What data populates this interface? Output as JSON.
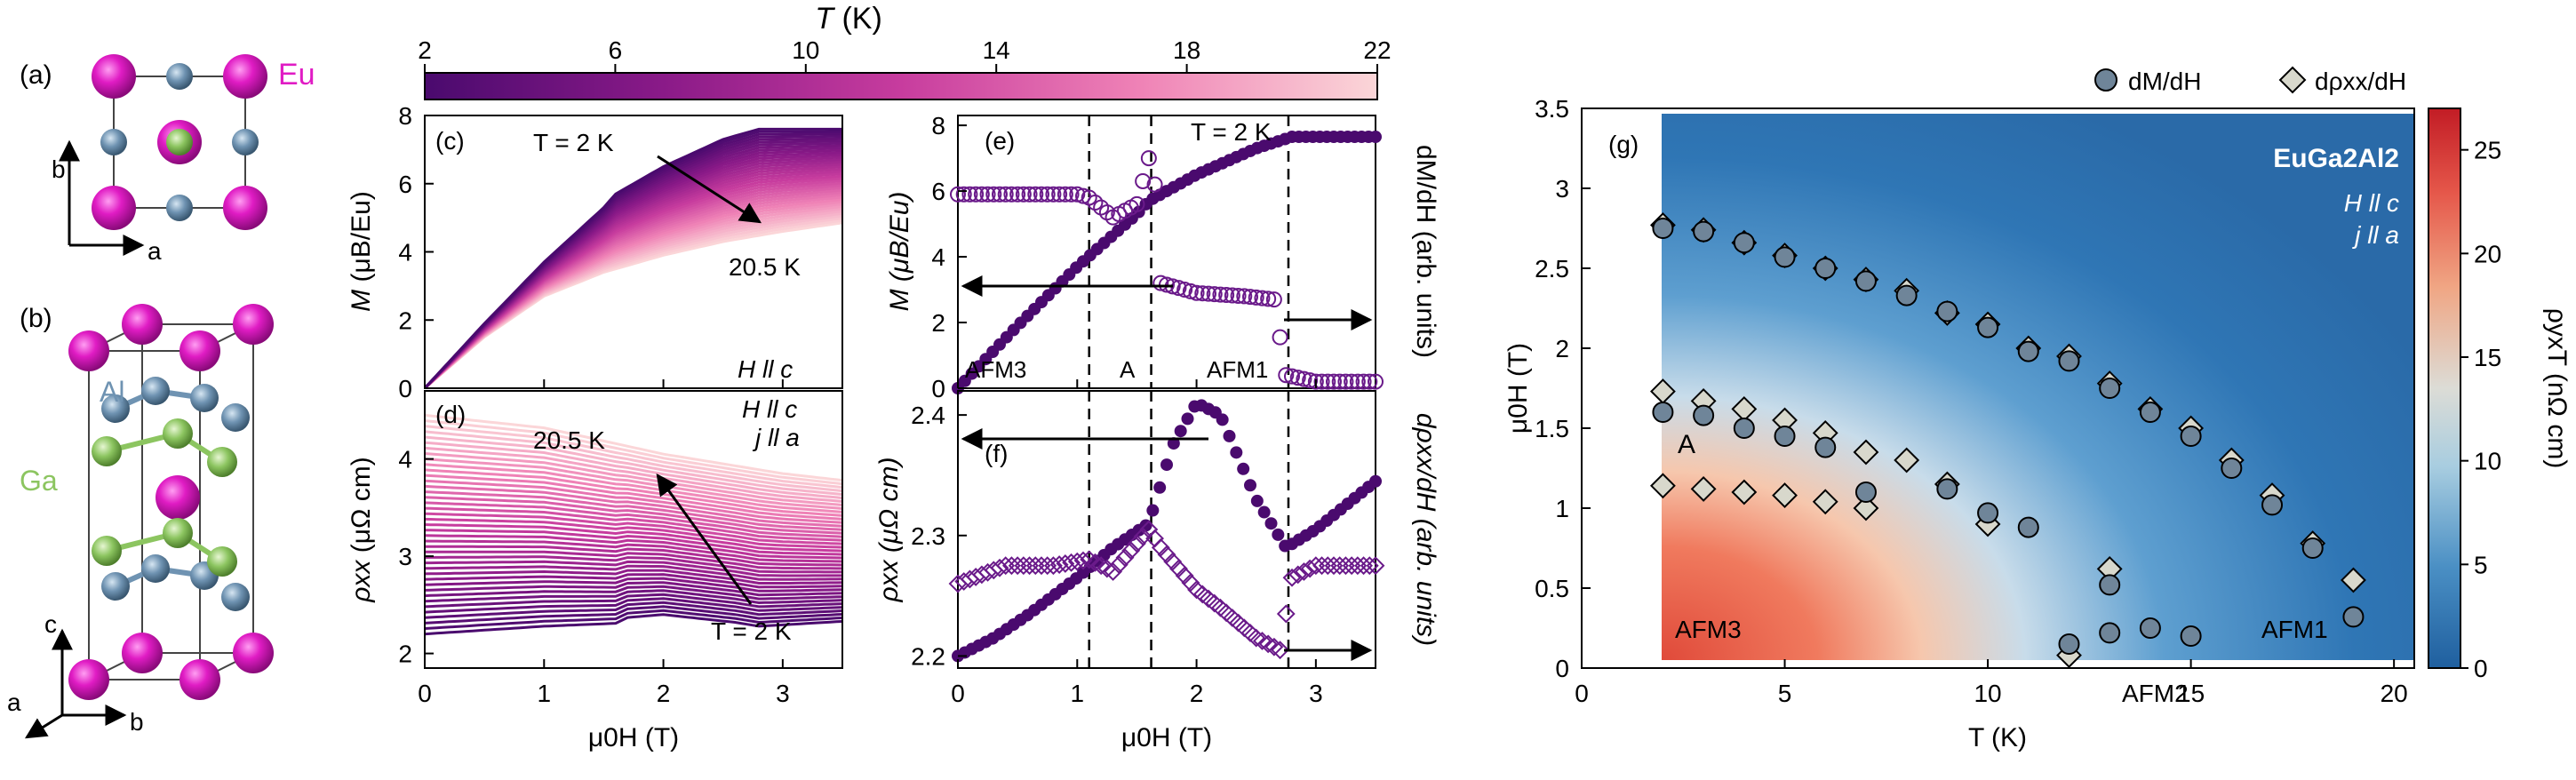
{
  "figure": {
    "panel_a": {
      "label": "(a)",
      "element": "Eu",
      "axis1": "b",
      "axis2": "a"
    },
    "panel_b": {
      "label": "(b)",
      "al": "Al",
      "ga": "Ga",
      "axes": [
        "c",
        "a",
        "b"
      ]
    },
    "colorbar_top": {
      "title_var": "T",
      "title_unit": " (K)",
      "ticks": [
        "2",
        "6",
        "10",
        "14",
        "18",
        "22"
      ]
    },
    "panel_c": {
      "label": "(c)",
      "ylabel_var": "M",
      "ylabel_unit": " (μB/Eu)",
      "arrow_start": "T = 2 K",
      "arrow_end": "20.5 K",
      "field_dir": "H ll c",
      "yticks": [
        "0",
        "2",
        "4",
        "6",
        "8"
      ]
    },
    "panel_d": {
      "label": "(d)",
      "ylabel_var": "ρxx",
      "ylabel_unit": " (μΩ cm)",
      "arrow_top": "20.5 K",
      "arrow_bottom": "T = 2 K",
      "field_dir": "H ll c",
      "current_dir": "j ll a",
      "yticks": [
        "2",
        "3",
        "4"
      ],
      "xticks": [
        "0",
        "1",
        "2",
        "3"
      ],
      "xlabel": "μ0H (T)"
    },
    "panel_e": {
      "label": "(e)",
      "temp": "T = 2 K",
      "ylabel_left": "M (μB/Eu)",
      "ylabel_right": "dM/dH (arb. units)",
      "yticks": [
        "0",
        "2",
        "4",
        "6",
        "8"
      ],
      "phase_labels": [
        "AFM3",
        "A",
        "AFM1"
      ]
    },
    "panel_f": {
      "label": "(f)",
      "ylabel_left": "ρxx (μΩ cm)",
      "ylabel_right": "dρxx/dH (arb. units)",
      "yticks": [
        "2.2",
        "2.3",
        "2.4"
      ],
      "xticks": [
        "0",
        "1",
        "2",
        "3"
      ],
      "xlabel": "μ0H (T)"
    },
    "panel_g": {
      "label": "(g)",
      "compound": "EuGa2Al2",
      "field_dir": "H ll c",
      "current_dir": "j ll a",
      "legend": [
        "dM/dH",
        "dρxx/dH"
      ],
      "ylabel": "μ0H (T)",
      "xlabel": "T (K)",
      "xticks": [
        "0",
        "5",
        "10",
        "15",
        "20"
      ],
      "yticks": [
        "0",
        "0.5",
        "1",
        "1.5",
        "2",
        "2.5",
        "3",
        "3.5"
      ],
      "phase_labels": [
        "A",
        "AFM3",
        "AFM1",
        "AFM2"
      ],
      "colorbar_label": "ρyxT (nΩ cm)",
      "colorbar_ticks": [
        "0",
        "5",
        "10",
        "15",
        "20",
        "25"
      ]
    }
  },
  "chart_data": [
    {
      "type": "line",
      "title": "(c) M vs μ0H, T = 2 K to 20.5 K",
      "xlabel": "μ0H (T)",
      "ylabel": "M (μB/Eu)",
      "xlim": [
        0,
        3.5
      ],
      "ylim": [
        0,
        8
      ],
      "series": [
        {
          "name": "T = 2 K",
          "x": [
            0,
            0.5,
            1.0,
            1.5,
            1.6,
            2.0,
            2.5,
            2.8,
            3.5
          ],
          "values": [
            0,
            1.9,
            3.7,
            5.3,
            5.7,
            6.5,
            7.3,
            7.6,
            7.6
          ]
        },
        {
          "name": "20.5 K",
          "x": [
            0,
            0.5,
            1.0,
            1.5,
            2.0,
            2.5,
            3.0,
            3.5
          ],
          "values": [
            0,
            1.5,
            2.7,
            3.4,
            3.9,
            4.3,
            4.6,
            4.85
          ]
        }
      ]
    },
    {
      "type": "line",
      "title": "(d) ρxx vs μ0H, T = 2 K to 20.5 K",
      "xlabel": "μ0H (T)",
      "ylabel": "ρxx (μΩ cm)",
      "xlim": [
        0,
        3.5
      ],
      "ylim": [
        1.85,
        4.7
      ],
      "series": [
        {
          "name": "T = 2 K",
          "x": [
            0,
            1.0,
            1.6,
            1.7,
            2.0,
            2.6,
            2.8,
            3.5
          ],
          "values": [
            2.2,
            2.28,
            2.31,
            2.37,
            2.4,
            2.32,
            2.28,
            2.33
          ]
        },
        {
          "name": "20.5 K",
          "x": [
            0,
            1.0,
            2.0,
            3.0,
            3.5
          ],
          "values": [
            4.45,
            4.32,
            4.05,
            3.85,
            3.78
          ]
        }
      ]
    },
    {
      "type": "line",
      "title": "(e) M and dM/dH at T = 2 K",
      "xlabel": "μ0H (T)",
      "ylabel": "M (μB/Eu)",
      "xlim": [
        0,
        3.5
      ],
      "ylim": [
        0,
        8.3
      ],
      "series": [
        {
          "name": "M",
          "x": [
            0,
            0.5,
            1.0,
            1.5,
            1.6,
            2.0,
            2.5,
            2.8,
            3.5
          ],
          "values": [
            0,
            1.9,
            3.7,
            5.3,
            5.7,
            6.5,
            7.3,
            7.65,
            7.65
          ]
        },
        {
          "name": "dM/dH",
          "x": [
            0,
            0.5,
            1.0,
            1.1,
            1.3,
            1.5,
            1.6,
            1.65,
            1.7,
            2.0,
            2.4,
            2.65,
            2.75,
            3.0,
            3.5
          ],
          "values": [
            5.9,
            5.9,
            5.9,
            5.8,
            5.2,
            5.6,
            7.0,
            6.2,
            3.2,
            2.9,
            2.8,
            2.7,
            0.4,
            0.2,
            0.2
          ]
        }
      ],
      "vlines": [
        1.1,
        1.62,
        2.77
      ]
    },
    {
      "type": "line",
      "title": "(f) ρxx and dρxx/dH at T = 2 K",
      "xlabel": "μ0H (T)",
      "ylabel": "ρxx (μΩ cm)",
      "xlim": [
        0,
        3.5
      ],
      "ylim": [
        2.19,
        2.42
      ],
      "series": [
        {
          "name": "ρxx",
          "x": [
            0,
            0.3,
            0.6,
            1.0,
            1.3,
            1.6,
            1.8,
            2.0,
            2.2,
            2.5,
            2.75,
            3.0,
            3.5
          ],
          "values": [
            2.2,
            2.215,
            2.235,
            2.265,
            2.29,
            2.31,
            2.375,
            2.41,
            2.4,
            2.33,
            2.29,
            2.305,
            2.345
          ]
        },
        {
          "name": "dρxx/dH",
          "x": [
            0,
            0.4,
            0.8,
            1.1,
            1.3,
            1.6,
            1.7,
            2.0,
            2.2,
            2.5,
            2.7,
            2.8,
            3.0,
            3.5
          ],
          "values": [
            2.26,
            2.275,
            2.275,
            2.28,
            2.27,
            2.305,
            2.29,
            2.255,
            2.24,
            2.215,
            2.205,
            2.265,
            2.275,
            2.275
          ]
        }
      ],
      "vlines": [
        1.1,
        1.62,
        2.77
      ]
    },
    {
      "type": "heatmap",
      "title": "(g) EuGa2Al2 phase diagram, ρyxT",
      "xlabel": "T (K)",
      "ylabel": "μ0H (T)",
      "xlim": [
        0,
        20.5
      ],
      "ylim": [
        0,
        3.5
      ],
      "colorbar": {
        "label": "ρyxT (nΩ cm)",
        "range": [
          0,
          27
        ]
      },
      "series": [
        {
          "name": "dM/dH",
          "x": [
            2,
            2,
            3,
            3,
            4,
            4,
            5,
            5,
            6,
            6,
            7,
            7,
            8,
            9,
            9,
            10,
            10,
            11,
            11,
            12,
            12,
            13,
            13,
            13,
            14,
            14,
            15,
            15,
            16,
            17,
            18,
            19
          ],
          "values": [
            2.75,
            1.6,
            2.73,
            1.58,
            2.66,
            1.5,
            2.57,
            1.45,
            2.5,
            1.38,
            2.42,
            1.1,
            2.33,
            2.23,
            1.12,
            2.13,
            0.97,
            1.98,
            0.88,
            1.92,
            0.15,
            1.75,
            0.52,
            0.22,
            1.6,
            0.25,
            1.45,
            0.2,
            1.25,
            1.02,
            0.75,
            0.32
          ]
        },
        {
          "name": "dρxx/dH",
          "x": [
            2,
            2,
            2,
            3,
            3,
            3,
            4,
            4,
            4,
            5,
            5,
            5,
            6,
            6,
            6,
            7,
            7,
            7,
            8,
            8,
            9,
            9,
            10,
            10,
            11,
            12,
            12,
            13,
            13,
            14,
            15,
            16,
            17,
            18,
            19
          ],
          "values": [
            2.77,
            1.73,
            1.14,
            2.74,
            1.67,
            1.12,
            2.66,
            1.62,
            1.1,
            2.58,
            1.55,
            1.08,
            2.5,
            1.47,
            1.04,
            2.43,
            1.35,
            1.0,
            2.36,
            1.3,
            2.22,
            1.15,
            2.15,
            0.9,
            2.0,
            1.95,
            0.08,
            1.78,
            0.62,
            1.62,
            1.5,
            1.3,
            1.08,
            0.78,
            0.55
          ]
        }
      ]
    }
  ]
}
